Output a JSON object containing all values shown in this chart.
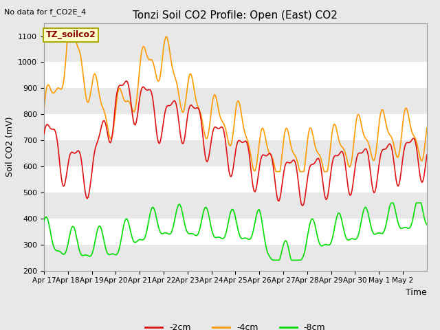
{
  "title": "Tonzi Soil CO2 Profile: Open (East) CO2",
  "no_data_text": "No data for f_CO2E_4",
  "ylabel": "Soil CO2 (mV)",
  "xlabel": "Time",
  "ylim": [
    200,
    1150
  ],
  "yticks": [
    200,
    300,
    400,
    500,
    600,
    700,
    800,
    900,
    1000,
    1100
  ],
  "legend_label": "TZ_soilco2",
  "series_labels": [
    "-2cm",
    "-4cm",
    "-8cm"
  ],
  "series_colors": [
    "#dd1111",
    "#ff9900",
    "#00dd00"
  ],
  "xtick_labels": [
    "Apr 17",
    "Apr 18",
    "Apr 19",
    "Apr 20",
    "Apr 21",
    "Apr 22",
    "Apr 23",
    "Apr 24",
    "Apr 25",
    "Apr 26",
    "Apr 27",
    "Apr 28",
    "Apr 29",
    "Apr 30",
    "May 1",
    "May 2"
  ],
  "bg_color": "#e8e8e8",
  "plot_bg_color": "#e8e8e8",
  "band_colors_white": "#ffffff",
  "band_colors_gray": "#e8e8e8",
  "linewidth": 1.2
}
